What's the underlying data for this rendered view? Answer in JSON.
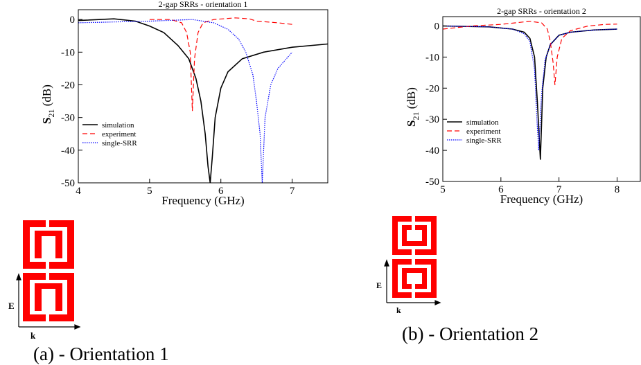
{
  "chart_data": [
    {
      "type": "line",
      "title": "2-gap SRRs - orientation 1",
      "xlabel": "Frequency (GHz)",
      "ylabel_main": "S",
      "ylabel_sub": "21",
      "ylabel_unit": " (dB)",
      "xlim": [
        4,
        7.5
      ],
      "ylim": [
        -50,
        3
      ],
      "xticks": [
        4,
        5,
        6,
        7
      ],
      "yticks": [
        0,
        -10,
        -20,
        -30,
        -40,
        -50
      ],
      "legend_position": "left",
      "series": [
        {
          "name": "simulation",
          "color": "#000000",
          "dash": "solid",
          "x": [
            4.0,
            4.5,
            4.8,
            5.0,
            5.2,
            5.4,
            5.55,
            5.65,
            5.72,
            5.78,
            5.82,
            5.85,
            5.88,
            5.92,
            6.0,
            6.1,
            6.3,
            6.6,
            7.0,
            7.5
          ],
          "y": [
            -0.3,
            0.2,
            -0.5,
            -2,
            -4,
            -8,
            -12,
            -18,
            -25,
            -35,
            -45,
            -50,
            -42,
            -30,
            -21,
            -16,
            -12,
            -10,
            -8.5,
            -7.5
          ]
        },
        {
          "name": "experiment",
          "color": "#ff0000",
          "dash": "dashed",
          "x": [
            5.0,
            5.3,
            5.45,
            5.52,
            5.57,
            5.6,
            5.63,
            5.68,
            5.75,
            5.9,
            6.2,
            6.4,
            6.5,
            6.8,
            7.0
          ],
          "y": [
            0,
            0,
            -1,
            -4,
            -10,
            -28,
            -12,
            -4,
            -1,
            0,
            0.5,
            0.2,
            -0.5,
            -1,
            -1.5
          ]
        },
        {
          "name": "single-SRR",
          "color": "#0000ff",
          "dash": "dotted",
          "x": [
            4.0,
            5.0,
            5.6,
            5.9,
            6.1,
            6.25,
            6.35,
            6.45,
            6.5,
            6.55,
            6.58,
            6.62,
            6.7,
            6.8,
            7.0
          ],
          "y": [
            -1,
            -0.5,
            0,
            -1,
            -3,
            -6,
            -10,
            -17,
            -25,
            -35,
            -50,
            -30,
            -20,
            -15,
            -10
          ]
        }
      ]
    },
    {
      "type": "line",
      "title": "2-gap SRRs - orientation 2",
      "xlabel": "Frequency (GHz)",
      "ylabel_main": "S",
      "ylabel_sub": "21",
      "ylabel_unit": " (dB)",
      "xlim": [
        5,
        8.4
      ],
      "ylim": [
        -50,
        3
      ],
      "xticks": [
        5,
        6,
        7,
        8
      ],
      "yticks": [
        0,
        -10,
        -20,
        -30,
        -40,
        -50
      ],
      "legend_position": "left",
      "series": [
        {
          "name": "simulation",
          "color": "#000000",
          "dash": "solid",
          "x": [
            5.0,
            5.8,
            6.2,
            6.4,
            6.5,
            6.58,
            6.63,
            6.68,
            6.72,
            6.78,
            6.85,
            7.0,
            7.2,
            7.6,
            8.0
          ],
          "y": [
            0,
            -0.3,
            -1,
            -2,
            -4,
            -10,
            -25,
            -43,
            -20,
            -10,
            -6,
            -3,
            -2,
            -1.3,
            -1
          ]
        },
        {
          "name": "experiment",
          "color": "#ff0000",
          "dash": "dashed",
          "x": [
            5.0,
            5.5,
            6.0,
            6.5,
            6.7,
            6.8,
            6.85,
            6.9,
            6.93,
            6.97,
            7.05,
            7.2,
            7.5,
            7.8,
            8.0
          ],
          "y": [
            -1,
            0,
            0.5,
            1.5,
            1,
            -1,
            -5,
            -12,
            -19,
            -10,
            -4,
            -1.5,
            0,
            0.5,
            0.6
          ]
        },
        {
          "name": "single-SRR",
          "color": "#0000ff",
          "dash": "dotted",
          "x": [
            5.0,
            5.8,
            6.2,
            6.4,
            6.5,
            6.58,
            6.62,
            6.65,
            6.7,
            6.76,
            6.85,
            7.0,
            7.2,
            7.6,
            8.0
          ],
          "y": [
            0,
            -0.3,
            -1,
            -2.5,
            -5,
            -14,
            -30,
            -40,
            -22,
            -11,
            -6,
            -3,
            -2,
            -1.3,
            -1
          ]
        }
      ]
    }
  ],
  "captions": {
    "a": "(a) - Orientation 1",
    "b": "(b) - Orientation 2"
  },
  "diagram_labels": {
    "e": "E",
    "k": "k"
  },
  "colors": {
    "srr_red": "#ff0000"
  }
}
